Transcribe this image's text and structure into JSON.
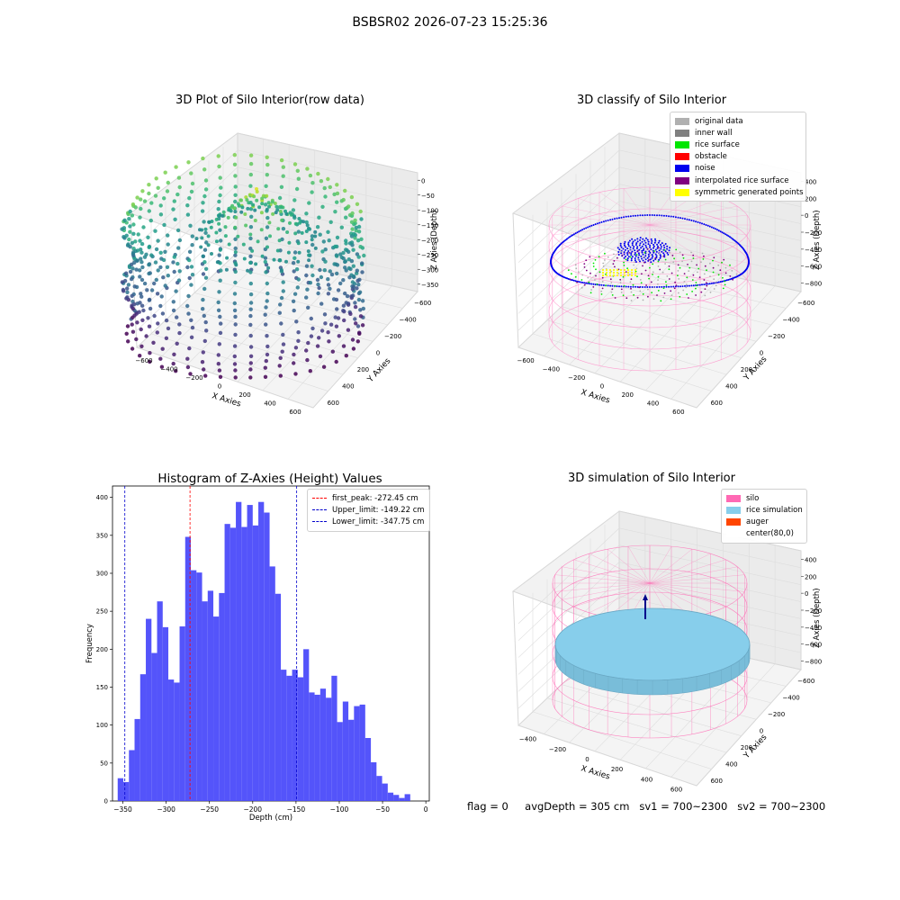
{
  "figure_title": "BSBSR02 2026-07-23 15:25:36",
  "footer": {
    "flag": "flag = 0",
    "avg_depth": "avgDepth = 305 cm",
    "sv1": "sv1 = 700~2300",
    "sv2": "sv2 = 700~2300"
  },
  "chart_data": [
    {
      "type": "scatter",
      "title": "3D Plot of Silo Interior(row data)",
      "xlabel": "X Axies",
      "ylabel": "Y Axies",
      "zlabel": "Z Axies (Depth)",
      "xticks": [
        "−600",
        "−400",
        "−200",
        "0",
        "200",
        "400",
        "600"
      ],
      "yticks": [
        "600",
        "400",
        "200",
        "0",
        "−200",
        "−400",
        "−600"
      ],
      "zticks": [
        "0",
        "−50",
        "−100",
        "−150",
        "−200",
        "−250",
        "−300",
        "−350"
      ],
      "colormap": "viridis"
    },
    {
      "type": "scatter",
      "title": "3D classify of Silo Interior",
      "xlabel": "X Axies",
      "ylabel": "Y Axies",
      "zlabel": "Z Axies (Depth)",
      "xticks": [
        "−600",
        "−400",
        "−200",
        "0",
        "200",
        "400",
        "600"
      ],
      "yticks": [
        "600",
        "400",
        "200",
        "0",
        "−200",
        "−400",
        "−600"
      ],
      "zticks": [
        "400",
        "200",
        "0",
        "−200",
        "−400",
        "−600",
        "−800"
      ],
      "legend": [
        {
          "label": "original data",
          "color": "#b0b0b0"
        },
        {
          "label": "inner wall",
          "color": "#808080"
        },
        {
          "label": "rice surface",
          "color": "#00e600"
        },
        {
          "label": "obstacle",
          "color": "#ff0000"
        },
        {
          "label": "noise",
          "color": "#0000ee"
        },
        {
          "label": "interpolated rice surface",
          "color": "#800080"
        },
        {
          "label": "symmetric generated points",
          "color": "#ffff00"
        }
      ]
    },
    {
      "type": "bar",
      "title": "Histogram of Z-Axies (Height) Values",
      "xlabel": "Depth (cm)",
      "ylabel": "Frequency",
      "xlim": [
        -362,
        4
      ],
      "ylim": [
        0,
        415
      ],
      "xticks": [
        -350,
        -300,
        -250,
        -200,
        -150,
        -100,
        -50,
        0
      ],
      "yticks": [
        0,
        50,
        100,
        150,
        200,
        250,
        300,
        350,
        400
      ],
      "bin_start": -356,
      "bin_width": 6.5,
      "values": [
        30,
        25,
        67,
        108,
        167,
        240,
        195,
        263,
        229,
        160,
        156,
        230,
        348,
        304,
        301,
        263,
        277,
        243,
        274,
        365,
        360,
        394,
        361,
        390,
        363,
        394,
        380,
        309,
        273,
        173,
        165,
        173,
        163,
        200,
        143,
        140,
        148,
        136,
        165,
        104,
        131,
        107,
        125,
        127,
        83,
        51,
        33,
        23,
        11,
        8,
        4,
        9
      ],
      "color": "#4b4bfa",
      "reference_lines": [
        {
          "label": "first_peak: -272.45 cm",
          "x": -272.45,
          "color": "#ff0000"
        },
        {
          "label": "Upper_limit: -149.22 cm",
          "x": -149.22,
          "color": "#0000cc"
        },
        {
          "label": "Lower_limit: -347.75 cm",
          "x": -347.75,
          "color": "#0000cc"
        }
      ]
    },
    {
      "type": "scatter",
      "title": "3D simulation of Silo Interior",
      "xlabel": "X Axies",
      "ylabel": "Y Axies",
      "zlabel": "Z Axies (Depth)",
      "xticks": [
        "−400",
        "−200",
        "0",
        "200",
        "400",
        "600"
      ],
      "yticks": [
        "600",
        "400",
        "200",
        "0",
        "−200",
        "−400",
        "−600"
      ],
      "zticks": [
        "400",
        "200",
        "0",
        "−200",
        "−400",
        "−600",
        "−800"
      ],
      "legend": [
        {
          "label": "silo",
          "color": "#ff69b4"
        },
        {
          "label": "rice simulation",
          "color": "#87ceeb"
        },
        {
          "label": "auger",
          "color": "#ff4500"
        },
        {
          "label": "center(80,0)",
          "color": "#ffffff"
        }
      ]
    }
  ]
}
